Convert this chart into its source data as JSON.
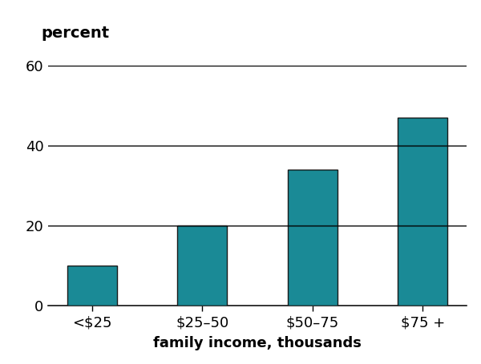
{
  "categories": [
    "<$25",
    "$25–50",
    "$50–75",
    "$75 +"
  ],
  "values": [
    10,
    20,
    34,
    47
  ],
  "bar_color": "#1a8a96",
  "bar_edgecolor": "#1a1a1a",
  "ylabel": "percent",
  "xlabel": "family income, thousands",
  "ylim": [
    0,
    60
  ],
  "yticks": [
    0,
    20,
    40,
    60
  ],
  "bg_color": "#ffffff",
  "grid_color": "#000000",
  "bar_width": 0.45,
  "label_fontsize": 13,
  "tick_fontsize": 13,
  "ylabel_fontsize": 14
}
